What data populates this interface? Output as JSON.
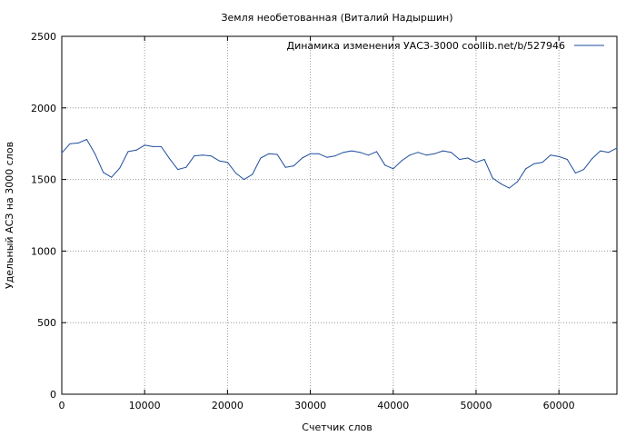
{
  "chart_data": {
    "type": "line",
    "title": "Земля необетованная (Виталий Надыршин)",
    "xlabel": "Счетчик слов",
    "ylabel": "Удельный АСЗ на 3000 слов",
    "xlim": [
      0,
      67000
    ],
    "ylim": [
      0,
      2500
    ],
    "x_ticks": [
      0,
      10000,
      20000,
      30000,
      40000,
      50000,
      60000
    ],
    "x_tick_labels": [
      "0",
      "10000",
      "20000",
      "30000",
      "40000",
      "50000",
      "60000"
    ],
    "y_ticks": [
      0,
      500,
      1000,
      1500,
      2000,
      2500
    ],
    "y_tick_labels": [
      "0",
      "500",
      "1000",
      "1500",
      "2000",
      "2500"
    ],
    "grid": true,
    "legend_position": "top-right",
    "series": [
      {
        "name": "Динамика изменения УАСЗ-3000  coollib.net/b/527946",
        "color": "#1f4e9c",
        "x": [
          0,
          1000,
          2000,
          3000,
          4000,
          5000,
          6000,
          7000,
          8000,
          9000,
          10000,
          11000,
          12000,
          13000,
          14000,
          15000,
          16000,
          17000,
          18000,
          19000,
          20000,
          21000,
          22000,
          23000,
          24000,
          25000,
          26000,
          27000,
          28000,
          29000,
          30000,
          31000,
          32000,
          33000,
          34000,
          35000,
          36000,
          37000,
          38000,
          39000,
          40000,
          41000,
          42000,
          43000,
          44000,
          45000,
          46000,
          47000,
          48000,
          49000,
          50000,
          51000,
          52000,
          53000,
          54000,
          55000,
          56000,
          57000,
          58000,
          59000,
          60000,
          61000,
          62000,
          63000,
          64000,
          65000,
          66000,
          67000
        ],
        "y": [
          1685,
          1750,
          1755,
          1780,
          1680,
          1550,
          1515,
          1580,
          1695,
          1705,
          1740,
          1730,
          1730,
          1645,
          1570,
          1585,
          1665,
          1670,
          1665,
          1630,
          1620,
          1545,
          1500,
          1535,
          1650,
          1680,
          1675,
          1585,
          1595,
          1650,
          1680,
          1680,
          1655,
          1665,
          1690,
          1700,
          1690,
          1670,
          1695,
          1600,
          1575,
          1630,
          1670,
          1690,
          1670,
          1680,
          1700,
          1690,
          1640,
          1650,
          1620,
          1640,
          1510,
          1470,
          1440,
          1485,
          1575,
          1610,
          1620,
          1670,
          1660,
          1640,
          1545,
          1570,
          1645,
          1700,
          1690,
          1720
        ]
      }
    ]
  }
}
